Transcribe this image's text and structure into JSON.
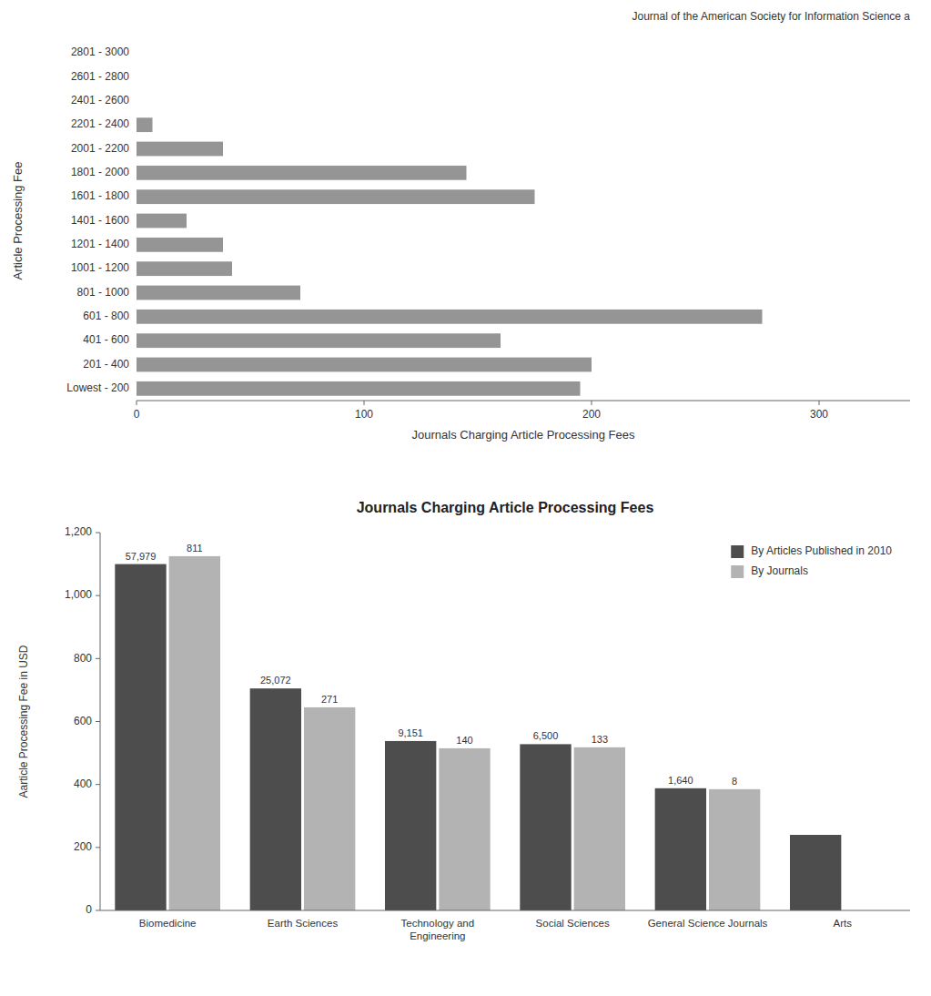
{
  "chart_data": [
    {
      "type": "bar",
      "orientation": "horizontal",
      "subtitle": "Journal of the American Society for Information Science a",
      "categories": [
        "Lowest - 200",
        "201 - 400",
        "401 - 600",
        "601 - 800",
        "801 - 1000",
        "1001 - 1200",
        "1201 - 1400",
        "1401 - 1600",
        "1601 - 1800",
        "1801 - 2000",
        "2001 - 2200",
        "2201 - 2400",
        "2401 - 2600",
        "2601 - 2800",
        "2801 - 3000"
      ],
      "values": [
        195,
        200,
        160,
        275,
        72,
        42,
        38,
        22,
        175,
        145,
        38,
        7,
        0,
        0,
        0
      ],
      "color": "#959595",
      "x_label": "Journals Charging Article Processing Fees",
      "y_label": "Article Processing Fee",
      "xlim": [
        0,
        340
      ],
      "xticks": [
        0,
        100,
        200,
        300
      ],
      "grid": false
    },
    {
      "type": "bar",
      "title": "Journals Charging Article Processing Fees",
      "categories": [
        "Biomedicine",
        "Earth Sciences",
        "Technology and\nEngineering",
        "Social Sciences",
        "General Science Journals",
        "Arts"
      ],
      "series": [
        {
          "name": "By Articles Published in 2010",
          "color": "#4d4d4d",
          "values": [
            1100,
            705,
            538,
            528,
            388,
            240
          ],
          "annotations": [
            "57,979",
            "25,072",
            "9,151",
            "6,500",
            "1,640",
            null
          ]
        },
        {
          "name": "By Journals",
          "color": "#b3b3b3",
          "values": [
            1125,
            645,
            515,
            518,
            385,
            null
          ],
          "annotations": [
            "811",
            "271",
            "140",
            "133",
            "8",
            null
          ]
        }
      ],
      "y_label": "Aarticle Processing Fee in USD",
      "ylim": [
        0,
        1200
      ],
      "yticks": [
        0,
        200,
        400,
        600,
        800,
        {
          "value": 1000,
          "label": "1,000"
        },
        {
          "value": 1200,
          "label": "1,200"
        }
      ],
      "legend": "upper right",
      "grid": false
    }
  ]
}
